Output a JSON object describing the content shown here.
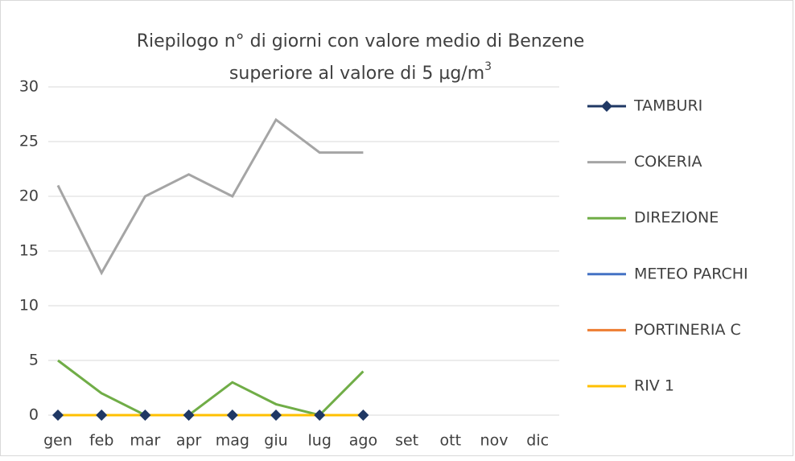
{
  "chart_data": {
    "type": "line",
    "title": [
      "Riepilogo  n° di giorni con valore medio di Benzene",
      "superiore al valore di 5 µg/m"
    ],
    "title_superscript": "3",
    "categories": [
      "gen",
      "feb",
      "mar",
      "apr",
      "mag",
      "giu",
      "lug",
      "ago",
      "set",
      "ott",
      "nov",
      "dic"
    ],
    "series": [
      {
        "name": "TAMBURI",
        "color": "#1f3864",
        "marker": "diamond",
        "values": [
          0,
          0,
          0,
          0,
          0,
          0,
          0,
          0,
          null,
          null,
          null,
          null
        ]
      },
      {
        "name": "COKERIA",
        "color": "#a5a5a5",
        "values": [
          21,
          13,
          20,
          22,
          20,
          27,
          24,
          24,
          null,
          null,
          null,
          null
        ]
      },
      {
        "name": "DIREZIONE",
        "color": "#70ad47",
        "values": [
          5,
          2,
          0,
          0,
          3,
          1,
          0,
          4,
          null,
          null,
          null,
          null
        ]
      },
      {
        "name": "METEO PARCHI",
        "color": "#4472c4",
        "values": [
          0,
          0,
          0,
          0,
          0,
          0,
          0,
          0,
          null,
          null,
          null,
          null
        ]
      },
      {
        "name": "PORTINERIA C",
        "color": "#ed7d31",
        "values": [
          0,
          0,
          0,
          0,
          0,
          0,
          0,
          0,
          null,
          null,
          null,
          null
        ]
      },
      {
        "name": "RIV 1",
        "color": "#ffc000",
        "values": [
          0,
          0,
          0,
          0,
          0,
          0,
          0,
          0,
          null,
          null,
          null,
          null
        ]
      }
    ],
    "ylim": [
      0,
      30
    ],
    "yticks": [
      0,
      5,
      10,
      15,
      20,
      25,
      30
    ],
    "grid": true,
    "legend": "right"
  }
}
